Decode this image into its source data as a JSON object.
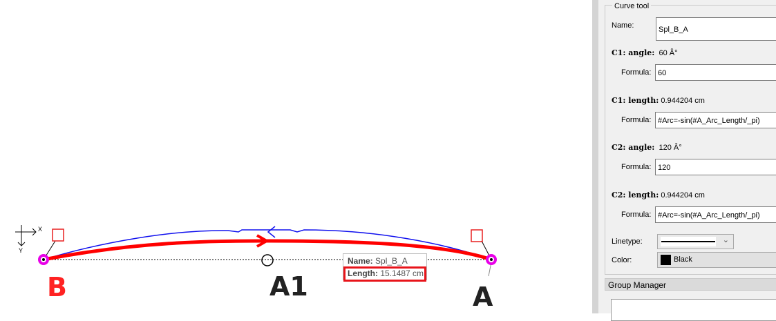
{
  "canvas": {
    "points": [
      {
        "label": "B",
        "color": "#ff2222"
      },
      {
        "label": "A1",
        "color": "#222222"
      },
      {
        "label": "A",
        "color": "#222222"
      }
    ],
    "axis": {
      "x_label": "X",
      "y_label": "Y"
    },
    "curve_color": "#ff0000",
    "aux_curve_color": "#0000ff",
    "point_color": "#e800e8",
    "tooltip": {
      "name_label": "Name:",
      "name_value": "Spl_B_A",
      "length_label": "Length:",
      "length_value": "15.1487 cm"
    }
  },
  "panel": {
    "title": "Curve tool",
    "name_label": "Name:",
    "name_value": "Spl_B_A",
    "c1_angle_label": "C1: angle:",
    "c1_angle_value": "60 Â°",
    "c1_angle_formula_label": "Formula:",
    "c1_angle_formula": "60",
    "c1_length_label": "C1: length:",
    "c1_length_value": "0.944204 cm",
    "c1_length_formula_label": "Formula:",
    "c1_length_formula": "#Arc=-sin(#A_Arc_Length/_pi)",
    "c2_angle_label": "C2: angle:",
    "c2_angle_value": "120 Â°",
    "c2_angle_formula_label": "Formula:",
    "c2_angle_formula": "120",
    "c2_length_label": "C2: length:",
    "c2_length_value": "0.944204 cm",
    "c2_length_formula_label": "Formula:",
    "c2_length_formula": "#Arc=-sin(#A_Arc_Length/_pi)",
    "linetype_label": "Linetype:",
    "color_label": "Color:",
    "color_value": "Black",
    "color_swatch": "#000000"
  },
  "group_manager": {
    "title": "Group Manager"
  }
}
